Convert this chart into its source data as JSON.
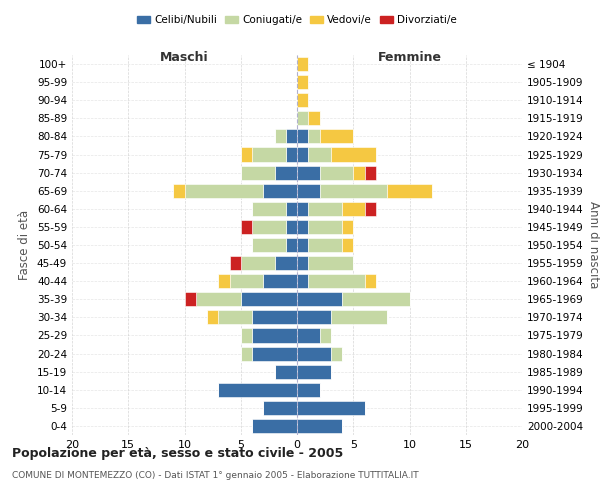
{
  "age_groups": [
    "0-4",
    "5-9",
    "10-14",
    "15-19",
    "20-24",
    "25-29",
    "30-34",
    "35-39",
    "40-44",
    "45-49",
    "50-54",
    "55-59",
    "60-64",
    "65-69",
    "70-74",
    "75-79",
    "80-84",
    "85-89",
    "90-94",
    "95-99",
    "100+"
  ],
  "birth_years": [
    "2000-2004",
    "1995-1999",
    "1990-1994",
    "1985-1989",
    "1980-1984",
    "1975-1979",
    "1970-1974",
    "1965-1969",
    "1960-1964",
    "1955-1959",
    "1950-1954",
    "1945-1949",
    "1940-1944",
    "1935-1939",
    "1930-1934",
    "1925-1929",
    "1920-1924",
    "1915-1919",
    "1910-1914",
    "1905-1909",
    "≤ 1904"
  ],
  "maschi": {
    "celibi": [
      4,
      3,
      7,
      2,
      4,
      4,
      4,
      5,
      3,
      2,
      1,
      1,
      1,
      3,
      2,
      1,
      1,
      0,
      0,
      0,
      0
    ],
    "coniugati": [
      0,
      0,
      0,
      0,
      1,
      1,
      3,
      4,
      3,
      3,
      3,
      3,
      3,
      7,
      3,
      3,
      1,
      0,
      0,
      0,
      0
    ],
    "vedovi": [
      0,
      0,
      0,
      0,
      0,
      0,
      1,
      0,
      1,
      0,
      0,
      0,
      0,
      1,
      0,
      1,
      0,
      0,
      0,
      0,
      0
    ],
    "divorziati": [
      0,
      0,
      0,
      0,
      0,
      0,
      0,
      1,
      0,
      1,
      0,
      1,
      0,
      0,
      0,
      0,
      0,
      0,
      0,
      0,
      0
    ]
  },
  "femmine": {
    "nubili": [
      4,
      6,
      2,
      3,
      3,
      2,
      3,
      4,
      1,
      1,
      1,
      1,
      1,
      2,
      2,
      1,
      1,
      0,
      0,
      0,
      0
    ],
    "coniugate": [
      0,
      0,
      0,
      0,
      1,
      1,
      5,
      6,
      5,
      4,
      3,
      3,
      3,
      6,
      3,
      2,
      1,
      1,
      0,
      0,
      0
    ],
    "vedove": [
      0,
      0,
      0,
      0,
      0,
      0,
      0,
      0,
      1,
      0,
      1,
      1,
      2,
      4,
      1,
      4,
      3,
      1,
      1,
      1,
      1
    ],
    "divorziate": [
      0,
      0,
      0,
      0,
      0,
      0,
      0,
      0,
      0,
      0,
      0,
      0,
      1,
      0,
      1,
      0,
      0,
      0,
      0,
      0,
      0
    ]
  },
  "colors": {
    "celibi": "#3a6ea5",
    "coniugati": "#c5d8a4",
    "vedovi": "#f5c842",
    "divorziati": "#cc2222"
  },
  "xlim": 20,
  "title": "Popolazione per età, sesso e stato civile - 2005",
  "subtitle": "COMUNE DI MONTEMEZZO (CO) - Dati ISTAT 1° gennaio 2005 - Elaborazione TUTTITALIA.IT",
  "ylabel_left": "Fasce di età",
  "ylabel_right": "Anni di nascita",
  "xlabel_left": "Maschi",
  "xlabel_right": "Femmine",
  "bg_color": "#ffffff",
  "grid_color": "#cccccc"
}
